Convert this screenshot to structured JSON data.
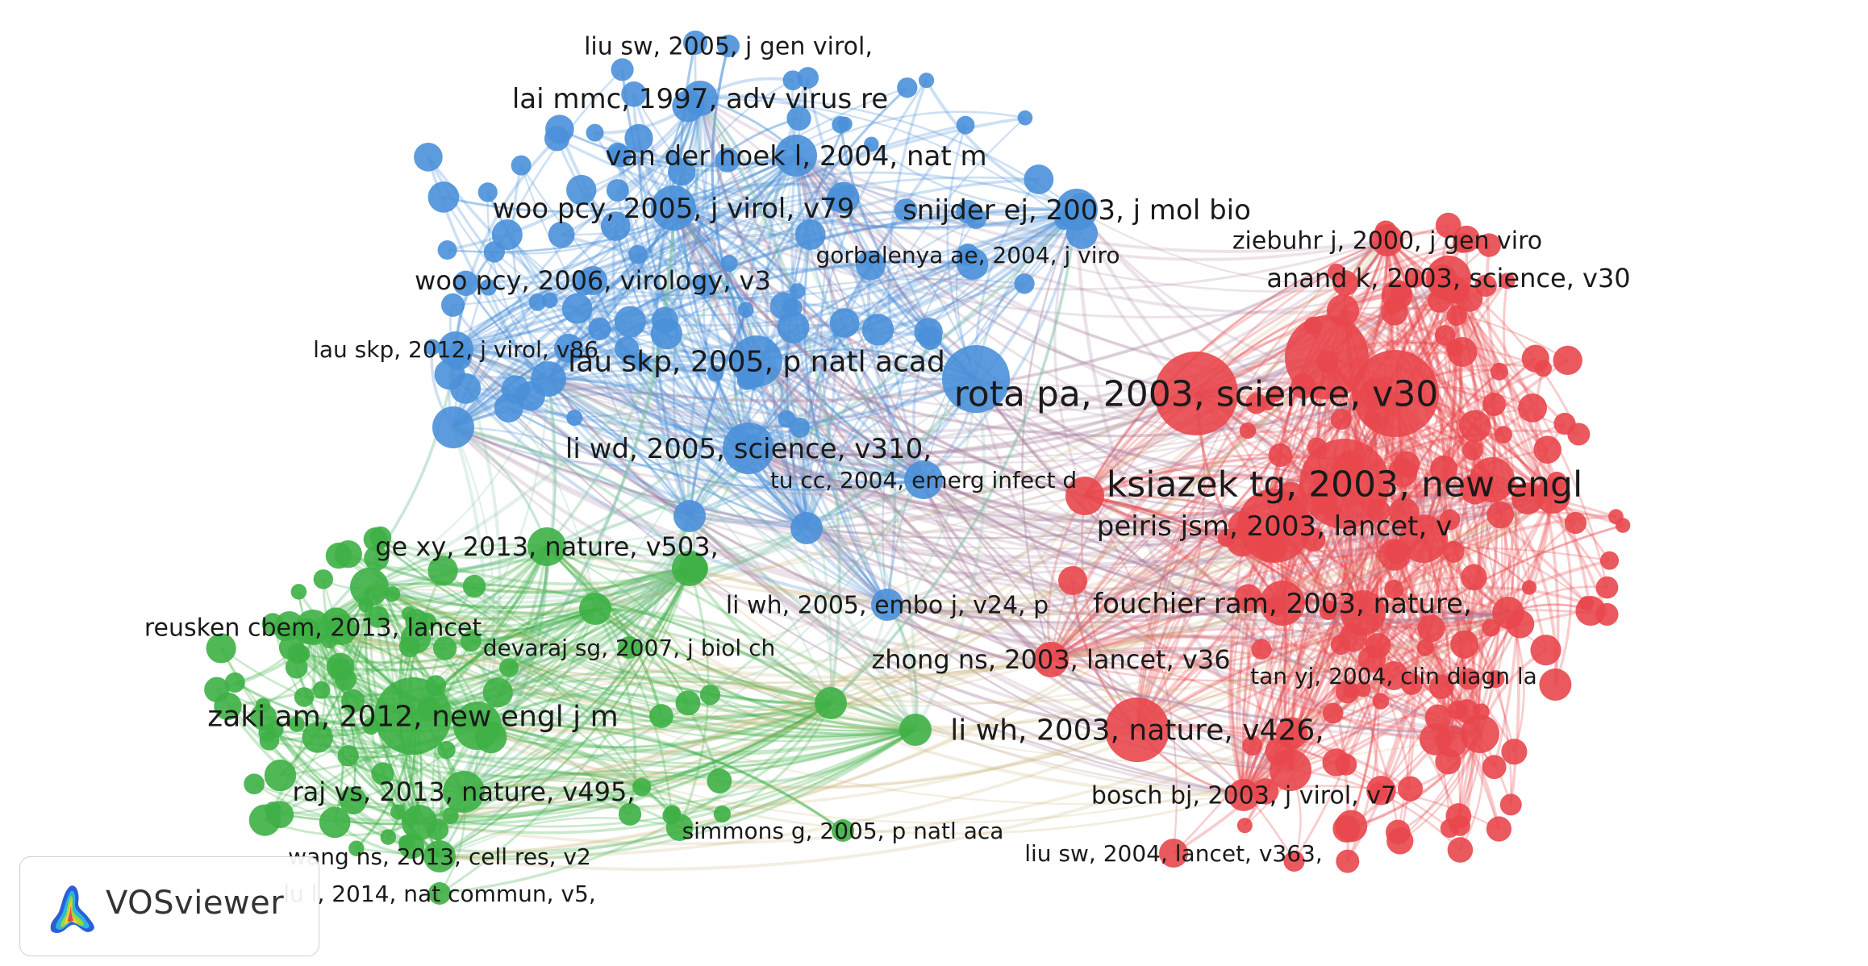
{
  "colors": {
    "blue": "#4a90d9",
    "red": "#e8474c",
    "green": "#3eb045",
    "blue_red_link": "#a87f9e"
  },
  "logo": {
    "text": "VOSviewer",
    "icon": "vosviewer-density-icon"
  },
  "labels": [
    {
      "id": "liu_sw_2005",
      "cluster": "blue",
      "text": "liu sw, 2005, j gen virol,"
    },
    {
      "id": "lai_mmc_1997",
      "cluster": "blue",
      "text": "lai mmc, 1997, adv virus re"
    },
    {
      "id": "van_der_hoek_2004",
      "cluster": "blue",
      "text": "van der hoek l, 2004, nat m"
    },
    {
      "id": "woo_pcy_2005",
      "cluster": "blue",
      "text": "woo pcy, 2005, j virol, v79"
    },
    {
      "id": "snijder_ej_2003",
      "cluster": "blue",
      "text": "snijder ej, 2003, j mol bio"
    },
    {
      "id": "gorbalenya_2004",
      "cluster": "blue",
      "text": "gorbalenya ae, 2004, j viro"
    },
    {
      "id": "woo_pcy_2006",
      "cluster": "blue",
      "text": "woo pcy, 2006, virology, v3"
    },
    {
      "id": "lau_skp_2012",
      "cluster": "blue",
      "text": "lau skp, 2012, j virol, v86"
    },
    {
      "id": "lau_skp_2005",
      "cluster": "blue",
      "text": "lau skp, 2005, p natl acad"
    },
    {
      "id": "li_wd_2005",
      "cluster": "blue",
      "text": "li wd, 2005, science, v310,"
    },
    {
      "id": "tu_cc_2004",
      "cluster": "blue",
      "text": "tu cc, 2004, emerg infect d"
    },
    {
      "id": "li_wh_2005",
      "cluster": "blue",
      "text": "li wh, 2005, embo j, v24, p"
    },
    {
      "id": "ziebuhr_2000",
      "cluster": "red",
      "text": "ziebuhr j, 2000, j gen viro"
    },
    {
      "id": "anand_k_2003",
      "cluster": "red",
      "text": "anand k, 2003, science, v30"
    },
    {
      "id": "rota_pa_2003",
      "cluster": "red",
      "text": "rota pa, 2003, science, v30"
    },
    {
      "id": "ksiazek_2003",
      "cluster": "red",
      "text": "ksiazek tg, 2003, new engl"
    },
    {
      "id": "peiris_2003",
      "cluster": "red",
      "text": "peiris jsm, 2003, lancet, v"
    },
    {
      "id": "fouchier_2003",
      "cluster": "red",
      "text": "fouchier ram, 2003, nature,"
    },
    {
      "id": "zhong_ns_2003",
      "cluster": "red",
      "text": "zhong ns, 2003, lancet, v36"
    },
    {
      "id": "tan_yj_2004",
      "cluster": "red",
      "text": "tan yj, 2004, clin diagn la"
    },
    {
      "id": "li_wh_2003",
      "cluster": "red",
      "text": "li wh, 2003, nature, v426,"
    },
    {
      "id": "bosch_bj_2003",
      "cluster": "red",
      "text": "bosch bj, 2003, j virol, v7"
    },
    {
      "id": "liu_sw_2004",
      "cluster": "red",
      "text": "liu sw, 2004, lancet, v363,"
    },
    {
      "id": "ge_xy_2013",
      "cluster": "green",
      "text": "ge xy, 2013, nature, v503,"
    },
    {
      "id": "reusken_2013",
      "cluster": "green",
      "text": "reusken cbem, 2013, lancet"
    },
    {
      "id": "devaraj_2007",
      "cluster": "green",
      "text": "devaraj sg, 2007, j biol ch"
    },
    {
      "id": "zaki_am_2012",
      "cluster": "green",
      "text": "zaki am, 2012, new engl j m"
    },
    {
      "id": "raj_vs_2013",
      "cluster": "green",
      "text": "raj vs, 2013, nature, v495,"
    },
    {
      "id": "simmons_g_2005",
      "cluster": "green",
      "text": "simmons g, 2005, p natl aca"
    },
    {
      "id": "wang_ns_2013",
      "cluster": "green",
      "text": "wang ns, 2013, cell res, v2"
    },
    {
      "id": "lu_l_2014",
      "cluster": "green",
      "text": "lu l, 2014, nat commun, v5,"
    }
  ]
}
